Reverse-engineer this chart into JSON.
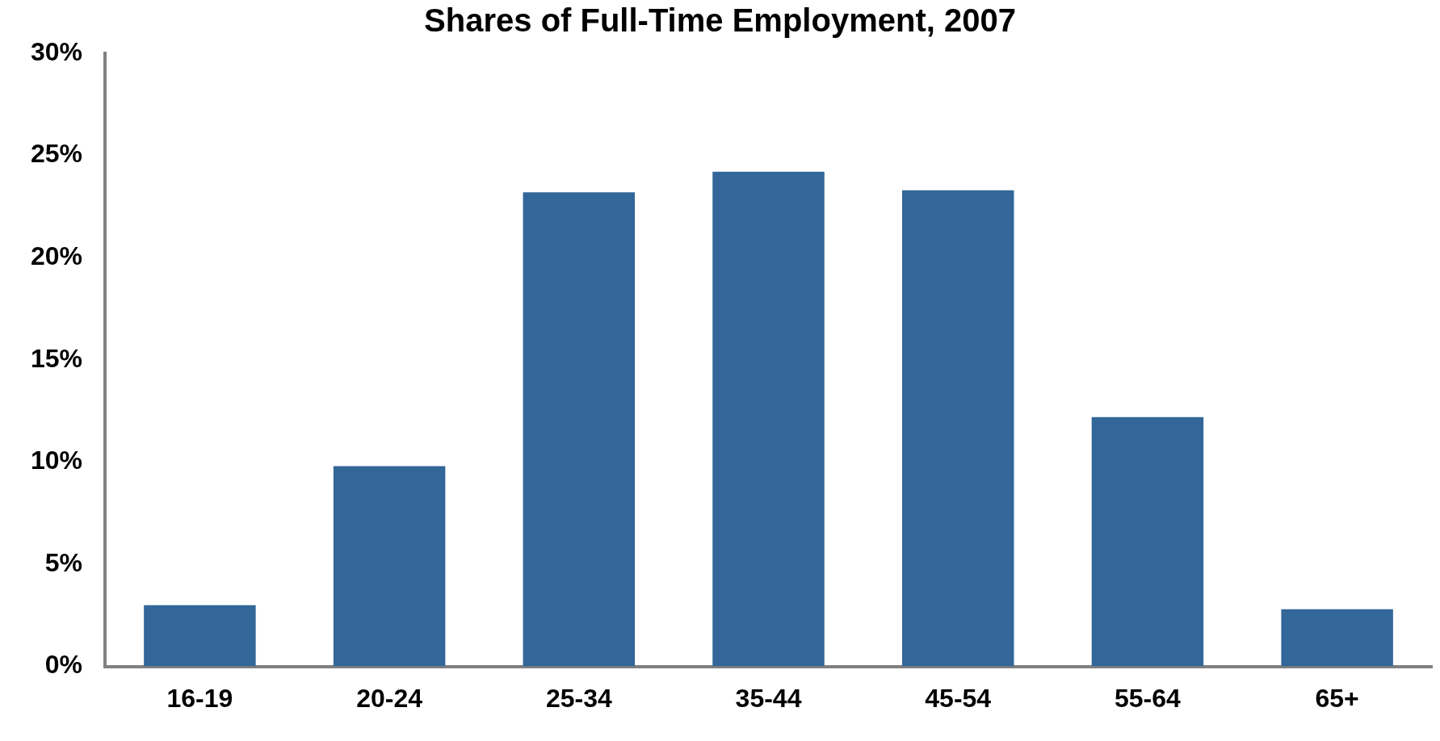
{
  "chart_data": {
    "type": "bar",
    "title": "Shares of Full-Time Employment, 2007",
    "categories": [
      "16-19",
      "20-24",
      "25-34",
      "35-44",
      "45-54",
      "55-64",
      "65+"
    ],
    "values": [
      3.0,
      9.8,
      23.2,
      24.2,
      23.3,
      12.2,
      2.8
    ],
    "color": "#336699",
    "ylim": [
      0,
      30
    ],
    "yticks": [
      {
        "value": 0,
        "label": "0%"
      },
      {
        "value": 5,
        "label": "5%"
      },
      {
        "value": 10,
        "label": "10%"
      },
      {
        "value": 15,
        "label": "15%"
      },
      {
        "value": 20,
        "label": "20%"
      },
      {
        "value": 25,
        "label": "25%"
      },
      {
        "value": 30,
        "label": "30%"
      }
    ],
    "grid": false,
    "legend": false
  }
}
